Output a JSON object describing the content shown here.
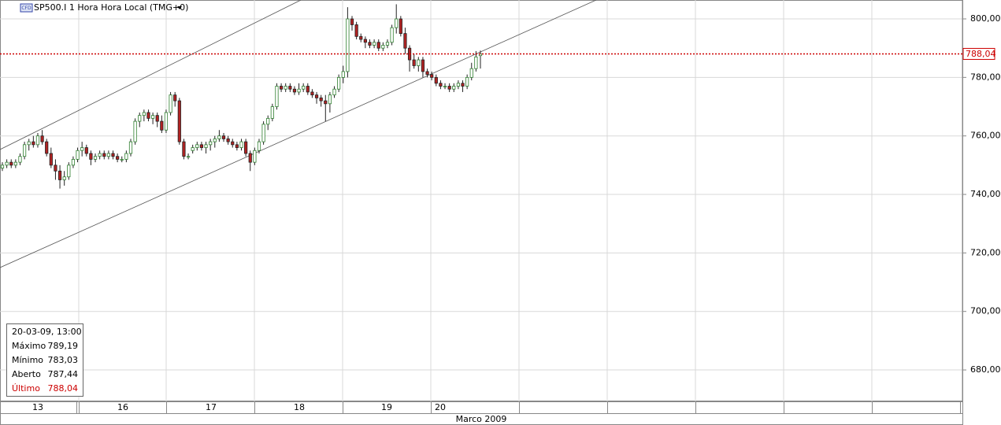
{
  "chart_data": {
    "type": "candlestick",
    "title": "SP500.I 1 Hora Hora Local (TMG+0)",
    "badge": "CFD",
    "up_color": "#2f7f2f",
    "down_color": "#b22222",
    "ylim": [
      669.25,
      806.46
    ],
    "yticks": [
      {
        "value": 680,
        "label": "680,00"
      },
      {
        "value": 700,
        "label": "700,00"
      },
      {
        "value": 720,
        "label": "720,00"
      },
      {
        "value": 740,
        "label": "740,00"
      },
      {
        "value": 760,
        "label": "760,00"
      },
      {
        "value": 780,
        "label": "780,00"
      },
      {
        "value": 800,
        "label": "800,00"
      }
    ],
    "grid": true,
    "days": [
      "13",
      "16",
      "17",
      "18",
      "19",
      "20"
    ],
    "month": "Marco 2009",
    "last_price": {
      "value": 788.04,
      "label": "788,04"
    },
    "ohlc": [
      [
        749,
        751,
        748,
        750
      ],
      [
        750,
        752,
        749,
        751
      ],
      [
        751,
        752,
        749,
        750
      ],
      [
        750,
        752,
        749,
        751
      ],
      [
        751,
        754,
        750,
        753
      ],
      [
        753,
        758,
        752,
        757
      ],
      [
        757,
        759,
        755,
        758
      ],
      [
        758,
        760,
        756,
        757
      ],
      [
        757,
        761,
        756,
        760
      ],
      [
        760,
        762,
        757,
        758
      ],
      [
        758,
        759,
        753,
        754
      ],
      [
        754,
        756,
        749,
        750
      ],
      [
        750,
        752,
        745,
        748
      ],
      [
        748,
        750,
        742,
        745
      ],
      [
        745,
        748,
        743,
        746
      ],
      [
        746,
        751,
        745,
        750
      ],
      [
        750,
        753,
        749,
        752
      ],
      [
        752,
        756,
        751,
        755
      ],
      [
        755,
        758,
        753,
        756
      ],
      [
        756,
        757,
        753,
        754
      ],
      [
        754,
        755,
        750,
        752
      ],
      [
        752,
        754,
        751,
        753
      ],
      [
        753,
        755,
        752,
        754
      ],
      [
        754,
        755,
        752,
        753
      ],
      [
        753,
        755,
        752,
        754
      ],
      [
        754,
        755,
        752,
        753
      ],
      [
        753,
        754,
        751,
        752
      ],
      [
        752,
        753,
        751,
        752
      ],
      [
        752,
        755,
        751,
        754
      ],
      [
        754,
        759,
        753,
        758
      ],
      [
        758,
        766,
        757,
        765
      ],
      [
        765,
        768,
        763,
        767
      ],
      [
        767,
        769,
        765,
        768
      ],
      [
        768,
        769,
        765,
        766
      ],
      [
        766,
        768,
        764,
        767
      ],
      [
        767,
        768,
        763,
        765
      ],
      [
        765,
        767,
        761,
        762
      ],
      [
        762,
        769,
        761,
        768
      ],
      [
        768,
        775,
        767,
        774
      ],
      [
        774,
        775,
        770,
        772
      ],
      [
        772,
        773,
        757,
        758
      ],
      [
        758,
        759,
        752,
        753
      ],
      [
        753,
        754,
        752,
        753
      ],
      [
        755,
        757,
        754,
        756
      ],
      [
        756,
        758,
        755,
        757
      ],
      [
        757,
        758,
        755,
        756
      ],
      [
        756,
        758,
        754,
        757
      ],
      [
        757,
        759,
        755,
        758
      ],
      [
        758,
        760,
        756,
        759
      ],
      [
        759,
        762,
        758,
        760
      ],
      [
        760,
        761,
        758,
        759
      ],
      [
        759,
        760,
        757,
        758
      ],
      [
        758,
        759,
        756,
        757
      ],
      [
        757,
        758,
        755,
        756
      ],
      [
        756,
        759,
        755,
        758
      ],
      [
        758,
        759,
        753,
        754
      ],
      [
        754,
        755,
        748,
        751
      ],
      [
        751,
        756,
        750,
        755
      ],
      [
        755,
        759,
        754,
        758
      ],
      [
        758,
        765,
        757,
        764
      ],
      [
        764,
        767,
        762,
        766
      ],
      [
        766,
        771,
        765,
        770
      ],
      [
        770,
        778,
        769,
        777
      ],
      [
        777,
        778,
        775,
        776
      ],
      [
        776,
        778,
        775,
        777
      ],
      [
        777,
        778,
        775,
        776
      ],
      [
        776,
        777,
        774,
        775
      ],
      [
        775,
        778,
        774,
        776
      ],
      [
        776,
        778,
        775,
        777
      ],
      [
        777,
        778,
        774,
        775
      ],
      [
        775,
        776,
        773,
        774
      ],
      [
        774,
        775,
        771,
        773
      ],
      [
        773,
        774,
        770,
        772
      ],
      [
        772,
        774,
        765,
        771
      ],
      [
        771,
        775,
        768,
        774
      ],
      [
        774,
        777,
        773,
        776
      ],
      [
        776,
        781,
        775,
        780
      ],
      [
        780,
        784,
        778,
        782
      ],
      [
        782,
        804,
        780,
        800
      ],
      [
        800,
        801,
        796,
        798
      ],
      [
        798,
        799,
        793,
        794
      ],
      [
        794,
        795,
        792,
        793
      ],
      [
        793,
        794,
        790,
        792
      ],
      [
        792,
        793,
        790,
        791
      ],
      [
        791,
        793,
        790,
        792
      ],
      [
        792,
        793,
        789,
        790
      ],
      [
        790,
        792,
        789,
        791
      ],
      [
        791,
        793,
        790,
        792
      ],
      [
        792,
        798,
        791,
        797
      ],
      [
        797,
        805,
        795,
        800
      ],
      [
        800,
        801,
        794,
        795
      ],
      [
        795,
        797,
        788,
        790
      ],
      [
        790,
        791,
        782,
        786
      ],
      [
        786,
        788,
        783,
        784
      ],
      [
        784,
        787,
        782,
        786
      ],
      [
        786,
        787,
        780,
        782
      ],
      [
        782,
        783,
        780,
        781
      ],
      [
        781,
        782,
        779,
        780
      ],
      [
        780,
        781,
        777,
        778
      ],
      [
        778,
        779,
        776,
        777
      ],
      [
        777,
        778,
        776,
        777
      ],
      [
        777,
        778,
        775,
        776
      ],
      [
        776,
        778,
        775,
        777
      ],
      [
        777,
        779,
        776,
        778
      ],
      [
        778,
        779,
        775,
        777
      ],
      [
        777,
        781,
        776,
        780
      ],
      [
        780,
        785,
        779,
        783
      ],
      [
        783,
        789,
        782,
        787
      ],
      [
        787.44,
        789.19,
        783.03,
        788.04
      ]
    ],
    "info": {
      "date": "20-03-09, 13:00",
      "rows": [
        {
          "label": "Máximo",
          "value": "789,19"
        },
        {
          "label": "Mínimo",
          "value": "783,03"
        },
        {
          "label": "Aberto",
          "value": "787,44"
        },
        {
          "label": "Último",
          "value": "788,04"
        }
      ]
    }
  }
}
